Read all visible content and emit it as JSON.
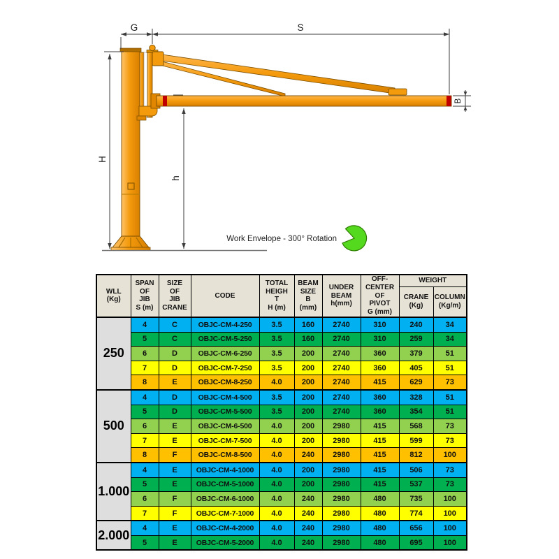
{
  "diagram": {
    "dim_g": "G",
    "dim_s": "S",
    "dim_H": "H",
    "dim_h": "h",
    "dim_b": "B",
    "note": "Work Envelope - 300° Rotation",
    "colors": {
      "crane_orange": "#F49A0D",
      "crane_highlight": "#FFC469",
      "crane_shadow": "#D87F00",
      "accent_red": "#C00000",
      "envelope_green": "#55D91E",
      "dimension_line": "#3c3c3c"
    }
  },
  "table": {
    "headers": {
      "wll": "WLL\n(Kg)",
      "span": "SPAN\nOF\nJIB\nS (m)",
      "size": "SIZE\nOF\nJIB\nCRANE",
      "code": "CODE",
      "height": "TOTAL\nHEIGH\nT\nH (m)",
      "beam": "BEAM\nSIZE\nB\n(mm)",
      "under_beam": "UNDER\nBEAM\nh(mm)",
      "pivot": "OFF-\nCENTER\nOF\nPIVOT\nG (mm)",
      "weight": "WEIGHT",
      "crane": "CRANE\n(Kg)",
      "column": "COLUMN\n(Kg/m)"
    },
    "row_colors": [
      "#00B0F0",
      "#00B050",
      "#92D050",
      "#FFFF00",
      "#FFC000"
    ],
    "groups": [
      {
        "wll": "250",
        "rows": [
          {
            "span": "4",
            "size": "C",
            "code": "OBJC-CM-4-250",
            "height": "3.5",
            "beam": "160",
            "under_beam": "2740",
            "pivot": "310",
            "crane_kg": "240",
            "column_kgm": "34"
          },
          {
            "span": "5",
            "size": "C",
            "code": "OBJC-CM-5-250",
            "height": "3.5",
            "beam": "160",
            "under_beam": "2740",
            "pivot": "310",
            "crane_kg": "259",
            "column_kgm": "34"
          },
          {
            "span": "6",
            "size": "D",
            "code": "OBJC-CM-6-250",
            "height": "3.5",
            "beam": "200",
            "under_beam": "2740",
            "pivot": "360",
            "crane_kg": "379",
            "column_kgm": "51"
          },
          {
            "span": "7",
            "size": "D",
            "code": "OBJC-CM-7-250",
            "height": "3.5",
            "beam": "200",
            "under_beam": "2740",
            "pivot": "360",
            "crane_kg": "405",
            "column_kgm": "51"
          },
          {
            "span": "8",
            "size": "E",
            "code": "OBJC-CM-8-250",
            "height": "4.0",
            "beam": "200",
            "under_beam": "2740",
            "pivot": "415",
            "crane_kg": "629",
            "column_kgm": "73"
          }
        ]
      },
      {
        "wll": "500",
        "rows": [
          {
            "span": "4",
            "size": "D",
            "code": "OBJC-CM-4-500",
            "height": "3.5",
            "beam": "200",
            "under_beam": "2740",
            "pivot": "360",
            "crane_kg": "328",
            "column_kgm": "51"
          },
          {
            "span": "5",
            "size": "D",
            "code": "OBJC-CM-5-500",
            "height": "3.5",
            "beam": "200",
            "under_beam": "2740",
            "pivot": "360",
            "crane_kg": "354",
            "column_kgm": "51"
          },
          {
            "span": "6",
            "size": "E",
            "code": "OBJC-CM-6-500",
            "height": "4.0",
            "beam": "200",
            "under_beam": "2980",
            "pivot": "415",
            "crane_kg": "568",
            "column_kgm": "73"
          },
          {
            "span": "7",
            "size": "E",
            "code": "OBJC-CM-7-500",
            "height": "4.0",
            "beam": "200",
            "under_beam": "2980",
            "pivot": "415",
            "crane_kg": "599",
            "column_kgm": "73"
          },
          {
            "span": "8",
            "size": "F",
            "code": "OBJC-CM-8-500",
            "height": "4.0",
            "beam": "240",
            "under_beam": "2980",
            "pivot": "415",
            "crane_kg": "812",
            "column_kgm": "100"
          }
        ]
      },
      {
        "wll": "1.000",
        "rows": [
          {
            "span": "4",
            "size": "E",
            "code": "OBJC-CM-4-1000",
            "height": "4.0",
            "beam": "200",
            "under_beam": "2980",
            "pivot": "415",
            "crane_kg": "506",
            "column_kgm": "73"
          },
          {
            "span": "5",
            "size": "E",
            "code": "OBJC-CM-5-1000",
            "height": "4.0",
            "beam": "200",
            "under_beam": "2980",
            "pivot": "415",
            "crane_kg": "537",
            "column_kgm": "73"
          },
          {
            "span": "6",
            "size": "F",
            "code": "OBJC-CM-6-1000",
            "height": "4.0",
            "beam": "240",
            "under_beam": "2980",
            "pivot": "480",
            "crane_kg": "735",
            "column_kgm": "100"
          },
          {
            "span": "7",
            "size": "F",
            "code": "OBJC-CM-7-1000",
            "height": "4.0",
            "beam": "240",
            "under_beam": "2980",
            "pivot": "480",
            "crane_kg": "774",
            "column_kgm": "100"
          }
        ]
      },
      {
        "wll": "2.000",
        "rows": [
          {
            "span": "4",
            "size": "E",
            "code": "OBJC-CM-4-2000",
            "height": "4.0",
            "beam": "240",
            "under_beam": "2980",
            "pivot": "480",
            "crane_kg": "656",
            "column_kgm": "100"
          },
          {
            "span": "5",
            "size": "E",
            "code": "OBJC-CM-5-2000",
            "height": "4.0",
            "beam": "240",
            "under_beam": "2980",
            "pivot": "480",
            "crane_kg": "695",
            "column_kgm": "100"
          }
        ]
      }
    ]
  }
}
